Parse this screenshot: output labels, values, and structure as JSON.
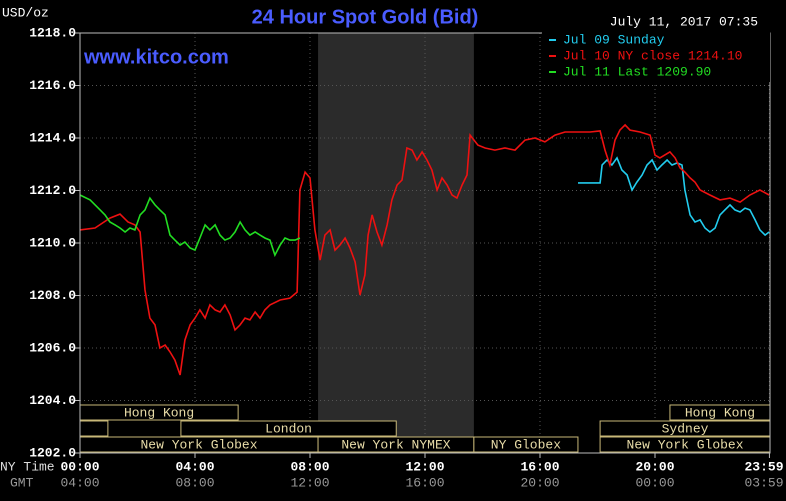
{
  "chart_data": {
    "type": "line",
    "title": "24 Hour Spot Gold (Bid)",
    "units": "USD/oz",
    "timestamp": "July 11, 2017 07:35",
    "source": "www.kitco.com",
    "x_row_label": "NY Time",
    "x2_row_label": "GMT",
    "xlim": [
      0,
      24
    ],
    "xticks": [
      {
        "value": 0,
        "label": "00:00"
      },
      {
        "value": 4,
        "label": "04:00"
      },
      {
        "value": 8,
        "label": "08:00"
      },
      {
        "value": 12,
        "label": "12:00"
      },
      {
        "value": 16,
        "label": "16:00"
      },
      {
        "value": 20,
        "label": "20:00"
      },
      {
        "value": 23.98,
        "label": "23:59"
      }
    ],
    "x2_tick_labels": [
      "04:00",
      "08:00",
      "12:00",
      "16:00",
      "20:00",
      "00:00",
      "03:59"
    ],
    "ylim": [
      1202,
      1218
    ],
    "yticks": [
      {
        "value": 1202,
        "label": "1202.0"
      },
      {
        "value": 1204,
        "label": "1204.0"
      },
      {
        "value": 1206,
        "label": "1206.0"
      },
      {
        "value": 1208,
        "label": "1208.0"
      },
      {
        "value": 1210,
        "label": "1210.0"
      },
      {
        "value": 1212,
        "label": "1212.0"
      },
      {
        "value": 1214,
        "label": "1214.0"
      },
      {
        "value": 1216,
        "label": "1216.0"
      },
      {
        "value": 1218,
        "label": "1218.0"
      }
    ],
    "grid": true,
    "legend": "top-right",
    "series": [
      {
        "name": "Jul 09 Sunday",
        "color": "#22ccee",
        "x": [
          17.32,
          18.09,
          18.16,
          18.33,
          18.5,
          18.68,
          18.85,
          19.03,
          19.2,
          19.37,
          19.55,
          19.72,
          19.9,
          20.07,
          20.24,
          20.42,
          20.59,
          20.77,
          20.94,
          21.04,
          21.22,
          21.39,
          21.57,
          21.74,
          21.91,
          22.09,
          22.26,
          22.43,
          22.61,
          22.78,
          22.96,
          23.13,
          23.3,
          23.48,
          23.65,
          23.83,
          23.97
        ],
        "values": [
          1212.29,
          1212.29,
          1212.97,
          1213.16,
          1212.97,
          1213.24,
          1212.78,
          1212.59,
          1212.02,
          1212.32,
          1212.59,
          1212.97,
          1213.16,
          1212.78,
          1212.97,
          1213.16,
          1212.97,
          1213.05,
          1212.97,
          1212.02,
          1211.07,
          1210.8,
          1210.88,
          1210.57,
          1210.42,
          1210.57,
          1211.07,
          1211.26,
          1211.45,
          1211.26,
          1211.18,
          1211.33,
          1211.26,
          1210.88,
          1210.5,
          1210.3,
          1210.42
        ]
      },
      {
        "name": "Jul 10 NY close 1214.10",
        "color": "#ee1111",
        "x": [
          0,
          0.52,
          1.04,
          1.39,
          1.67,
          1.91,
          2.09,
          2.26,
          2.43,
          2.61,
          2.78,
          2.96,
          3.13,
          3.3,
          3.48,
          3.65,
          3.83,
          4.0,
          4.17,
          4.35,
          4.52,
          4.7,
          4.87,
          5.04,
          5.22,
          5.39,
          5.57,
          5.74,
          5.91,
          6.09,
          6.26,
          6.43,
          6.61,
          6.96,
          7.3,
          7.55,
          7.65,
          7.83,
          8.0,
          8.17,
          8.35,
          8.52,
          8.7,
          8.87,
          9.04,
          9.22,
          9.39,
          9.57,
          9.74,
          9.91,
          10.02,
          10.16,
          10.33,
          10.5,
          10.68,
          10.85,
          11.03,
          11.2,
          11.37,
          11.55,
          11.72,
          11.9,
          12.07,
          12.24,
          12.42,
          12.59,
          12.77,
          12.94,
          13.11,
          13.29,
          13.46,
          13.57,
          13.84,
          14.09,
          14.43,
          14.78,
          15.13,
          15.48,
          15.83,
          16.17,
          16.52,
          16.87,
          17.22,
          17.74,
          18.09,
          18.26,
          18.43,
          18.61,
          18.78,
          18.96,
          19.13,
          19.48,
          19.83,
          20.0,
          20.17,
          20.52,
          20.7,
          20.87,
          21.04,
          21.22,
          21.39,
          21.57,
          21.91,
          22.26,
          22.61,
          22.96,
          23.3,
          23.65,
          23.97
        ],
        "values": [
          1210.5,
          1210.57,
          1210.95,
          1211.1,
          1210.8,
          1210.69,
          1210.42,
          1208.21,
          1207.14,
          1206.88,
          1206.0,
          1206.11,
          1205.85,
          1205.54,
          1204.97,
          1206.3,
          1206.88,
          1207.14,
          1207.45,
          1207.14,
          1207.64,
          1207.45,
          1207.37,
          1207.64,
          1207.26,
          1206.69,
          1206.88,
          1207.14,
          1207.07,
          1207.37,
          1207.14,
          1207.45,
          1207.64,
          1207.83,
          1207.9,
          1208.13,
          1212.02,
          1212.7,
          1212.48,
          1210.5,
          1209.35,
          1210.3,
          1210.5,
          1209.73,
          1209.92,
          1210.19,
          1209.81,
          1209.28,
          1208.02,
          1208.78,
          1210.3,
          1211.07,
          1210.42,
          1209.92,
          1210.69,
          1211.64,
          1212.21,
          1212.4,
          1213.62,
          1213.54,
          1213.16,
          1213.47,
          1213.16,
          1212.78,
          1212.02,
          1212.48,
          1212.21,
          1211.83,
          1211.71,
          1212.21,
          1212.59,
          1214.11,
          1213.73,
          1213.62,
          1213.54,
          1213.62,
          1213.54,
          1213.92,
          1214.0,
          1213.85,
          1214.11,
          1214.23,
          1214.23,
          1214.23,
          1214.27,
          1213.54,
          1212.97,
          1213.92,
          1214.3,
          1214.5,
          1214.3,
          1214.23,
          1214.11,
          1213.35,
          1213.24,
          1213.47,
          1213.24,
          1212.86,
          1212.7,
          1212.48,
          1212.32,
          1212.02,
          1211.83,
          1211.64,
          1211.71,
          1211.56,
          1211.83,
          1212.02,
          1211.83
        ]
      },
      {
        "name": "Jul 11 Last 1209.90",
        "color": "#22dd22",
        "x": [
          0,
          0.35,
          0.7,
          0.87,
          1.04,
          1.22,
          1.39,
          1.57,
          1.74,
          1.91,
          2.09,
          2.26,
          2.43,
          2.61,
          2.78,
          2.96,
          3.13,
          3.3,
          3.48,
          3.65,
          3.83,
          4.0,
          4.17,
          4.35,
          4.52,
          4.7,
          4.87,
          5.04,
          5.22,
          5.39,
          5.57,
          5.74,
          5.91,
          6.09,
          6.26,
          6.43,
          6.61,
          6.78,
          6.96,
          7.13,
          7.3,
          7.48,
          7.65
        ],
        "values": [
          1211.83,
          1211.64,
          1211.26,
          1211.07,
          1210.8,
          1210.69,
          1210.57,
          1210.42,
          1210.57,
          1210.5,
          1211.07,
          1211.26,
          1211.71,
          1211.45,
          1211.26,
          1211.07,
          1210.3,
          1210.11,
          1209.92,
          1210.04,
          1209.81,
          1209.73,
          1210.19,
          1210.69,
          1210.5,
          1210.69,
          1210.3,
          1210.11,
          1210.19,
          1210.42,
          1210.8,
          1210.5,
          1210.3,
          1210.42,
          1210.3,
          1210.19,
          1210.11,
          1209.54,
          1209.92,
          1210.19,
          1210.11,
          1210.11,
          1210.19
        ]
      }
    ],
    "sessions": [
      [
        {
          "label": "Hong Kong",
          "start": 0,
          "end": 5.5
        },
        {
          "label": "Hong Kong",
          "start": 20.52,
          "end": 24
        }
      ],
      [
        {
          "label": null,
          "start": 0,
          "end": 0.97
        },
        {
          "label": "London",
          "start": 3.51,
          "end": 11.0
        },
        {
          "label": "Sydney",
          "start": 18.09,
          "end": 24
        }
      ],
      [
        {
          "label": "New York Globex",
          "start": 0,
          "end": 8.28
        },
        {
          "label": "New York NYMEX",
          "start": 8.28,
          "end": 13.7
        },
        {
          "label": "NY Globex",
          "start": 13.7,
          "end": 17.32
        },
        {
          "label": "New York Globex",
          "start": 18.09,
          "end": 24
        }
      ]
    ]
  }
}
